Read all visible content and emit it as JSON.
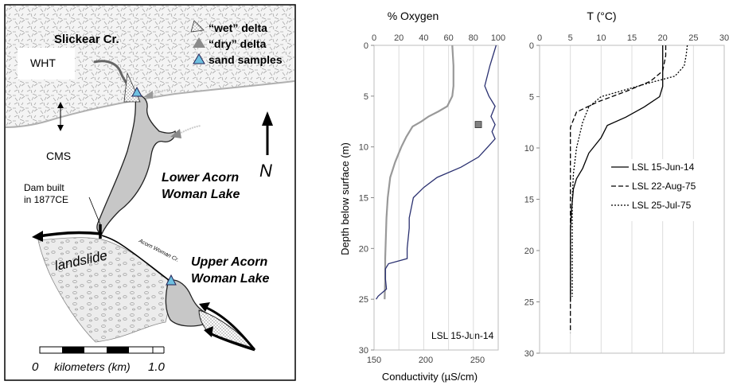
{
  "map": {
    "labels": {
      "creek": "Slickear Cr.",
      "wht": "WHT",
      "cms": "CMS",
      "lower_lake_1": "Lower Acorn",
      "lower_lake_2": "Woman Lake",
      "upper_lake_1": "Upper Acorn",
      "upper_lake_2": "Woman Lake",
      "dam_1": "Dam built",
      "dam_2": "in 1877CE",
      "landslide": "landslide",
      "creek_small": "Acorn Woman Cr.",
      "north": "N"
    },
    "legend": [
      {
        "label": "“wet” delta",
        "symbol": "hatched-triangle"
      },
      {
        "label": "“dry” delta",
        "symbol": "gray-triangle"
      },
      {
        "label": "sand samples",
        "symbol": "blue-triangle"
      }
    ],
    "scale_bar": {
      "start": "0",
      "end": "1.0",
      "unit": "kilometers (km)"
    },
    "colors": {
      "lake": "#c8c8c8",
      "sample": "#6ec0e0",
      "delta": "#8a8a8a",
      "rock": "#f2f2f2",
      "slide": "#e9e9e9"
    }
  },
  "chart_data": [
    {
      "type": "line",
      "title": "% Oxygen",
      "xlabel_bottom": "Conductivity (µS/cm)",
      "ylabel": "Depth below surface (m)",
      "y_inverted": true,
      "ylim": [
        0,
        30
      ],
      "yticks": [
        0,
        5,
        10,
        15,
        20,
        25,
        30
      ],
      "x_top": {
        "lim": [
          0,
          100
        ],
        "ticks": [
          0,
          20,
          40,
          60,
          80,
          100
        ]
      },
      "x_bottom": {
        "lim": [
          150,
          270
        ],
        "ticks": [
          150,
          200,
          250
        ]
      },
      "annotation": "LSL 15-Jun-14",
      "series": [
        {
          "axis": "top",
          "color": "#999999",
          "points": [
            [
              63,
              0
            ],
            [
              64,
              2
            ],
            [
              64,
              4
            ],
            [
              63,
              5
            ],
            [
              59,
              6
            ],
            [
              52,
              6.5
            ],
            [
              44,
              7
            ],
            [
              38,
              7.5
            ],
            [
              31,
              8
            ],
            [
              26,
              9
            ],
            [
              22,
              10
            ],
            [
              17,
              11.5
            ],
            [
              13,
              13
            ],
            [
              11,
              15
            ],
            [
              10,
              17
            ],
            [
              9.5,
              19
            ],
            [
              9,
              21
            ],
            [
              9,
              23
            ],
            [
              8.5,
              25
            ]
          ]
        },
        {
          "axis": "bottom",
          "color": "#2a3070",
          "points": [
            [
              268,
              0
            ],
            [
              262,
              2
            ],
            [
              257,
              4
            ],
            [
              261,
              5
            ],
            [
              267,
              6
            ],
            [
              263,
              7
            ],
            [
              267,
              7.8
            ],
            [
              264,
              8.5
            ],
            [
              267,
              9.2
            ],
            [
              260,
              10
            ],
            [
              251,
              11
            ],
            [
              234,
              12
            ],
            [
              211,
              13
            ],
            [
              198,
              14
            ],
            [
              188,
              15
            ],
            [
              186,
              16
            ],
            [
              184,
              17
            ],
            [
              184,
              18
            ],
            [
              183,
              19
            ],
            [
              182,
              20
            ],
            [
              182,
              21
            ],
            [
              164,
              21.5
            ],
            [
              161,
              22
            ],
            [
              161,
              23
            ],
            [
              162,
              24
            ],
            [
              154,
              24.7
            ],
            [
              152,
              25
            ]
          ]
        }
      ],
      "marker": {
        "x_axis": "top",
        "x": 84,
        "y": 7.8,
        "color": "#808080"
      }
    },
    {
      "type": "line",
      "title": "T (°C)",
      "ylim": [
        0,
        30
      ],
      "yticks": [
        0,
        5,
        10,
        15,
        20,
        25,
        30
      ],
      "y_inverted": true,
      "x_top": {
        "lim": [
          0,
          30
        ],
        "ticks": [
          0,
          5,
          10,
          15,
          20,
          25,
          30
        ]
      },
      "legend_position": "middle-right",
      "series": [
        {
          "name": "LSL 15-Jun-14",
          "style": "solid",
          "points": [
            [
              20,
              0
            ],
            [
              20,
              1
            ],
            [
              20,
              2
            ],
            [
              20,
              3
            ],
            [
              20,
              4
            ],
            [
              19.5,
              5
            ],
            [
              17,
              6
            ],
            [
              14,
              7
            ],
            [
              11,
              7.8
            ],
            [
              10,
              9
            ],
            [
              8,
              10.5
            ],
            [
              7,
              12
            ],
            [
              6,
              13
            ],
            [
              5.5,
              14
            ],
            [
              5.2,
              16
            ],
            [
              5,
              18
            ],
            [
              5,
              20
            ],
            [
              5,
              22
            ],
            [
              5,
              25
            ]
          ]
        },
        {
          "name": "LSL 22-Aug-75",
          "style": "dashed",
          "points": [
            [
              20.5,
              0
            ],
            [
              20.5,
              1
            ],
            [
              20,
              2.5
            ],
            [
              18,
              3.5
            ],
            [
              14,
              4.5
            ],
            [
              9.5,
              5.5
            ],
            [
              6,
              6.5
            ],
            [
              5,
              8
            ],
            [
              5,
              10
            ],
            [
              5,
              14
            ],
            [
              5,
              18
            ],
            [
              5,
              22
            ],
            [
              5,
              25
            ],
            [
              5,
              28
            ]
          ]
        },
        {
          "name": "LSL 25-Jul-75",
          "style": "dotted",
          "points": [
            [
              24,
              0
            ],
            [
              23.8,
              1
            ],
            [
              23.5,
              2
            ],
            [
              22,
              3
            ],
            [
              17,
              3.8
            ],
            [
              13,
              4.5
            ],
            [
              10,
              5
            ],
            [
              8,
              6
            ],
            [
              7,
              7.5
            ],
            [
              6,
              10
            ],
            [
              5.5,
              12.5
            ],
            [
              5.3,
              15
            ],
            [
              5.3,
              18
            ],
            [
              5.3,
              20
            ],
            [
              5.3,
              24.5
            ]
          ]
        }
      ]
    }
  ]
}
